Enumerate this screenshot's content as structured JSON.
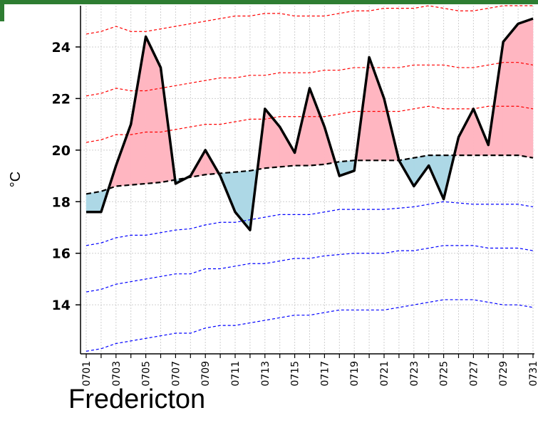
{
  "caption": "Fredericton",
  "chart_data": {
    "type": "line",
    "ylabel": "°C",
    "xlabel": "",
    "ylim": [
      12.1,
      25.6
    ],
    "yticks": [
      14,
      16,
      18,
      20,
      22,
      24
    ],
    "x": [
      "0701",
      "0702",
      "0703",
      "0704",
      "0705",
      "0706",
      "0707",
      "0708",
      "0709",
      "0710",
      "0711",
      "0712",
      "0713",
      "0714",
      "0715",
      "0716",
      "0717",
      "0718",
      "0719",
      "0720",
      "0721",
      "0722",
      "0723",
      "0724",
      "0725",
      "0726",
      "0727",
      "0728",
      "0729",
      "0730",
      "0731"
    ],
    "x_tick_labels": [
      "0701",
      "0703",
      "0705",
      "0707",
      "0709",
      "0711",
      "0713",
      "0715",
      "0717",
      "0719",
      "0721",
      "0723",
      "0725",
      "0727",
      "0729",
      "0731"
    ],
    "grid": true,
    "colors": {
      "above_fill": "#ffb6c1",
      "below_fill": "#add8e6",
      "upper_lines": "#ff0000",
      "lower_lines": "#0000ff",
      "observed": "#000000",
      "frame_accent": "#2e7d32"
    },
    "series": [
      {
        "role": "observed",
        "values": [
          17.6,
          17.6,
          19.4,
          21.0,
          24.4,
          23.2,
          18.7,
          19.0,
          20.0,
          19.0,
          17.6,
          16.9,
          21.6,
          20.9,
          19.9,
          22.4,
          20.9,
          19.0,
          19.2,
          23.6,
          22.0,
          19.6,
          18.6,
          19.4,
          18.1,
          20.5,
          21.6,
          20.2,
          24.2,
          24.9,
          25.1
        ]
      },
      {
        "role": "normal",
        "values": [
          18.3,
          18.4,
          18.6,
          18.65,
          18.7,
          18.75,
          18.85,
          18.95,
          19.05,
          19.1,
          19.15,
          19.2,
          19.3,
          19.35,
          19.4,
          19.4,
          19.45,
          19.55,
          19.6,
          19.6,
          19.6,
          19.6,
          19.7,
          19.8,
          19.8,
          19.8,
          19.8,
          19.8,
          19.8,
          19.8,
          19.7
        ]
      },
      {
        "role": "upper",
        "values": [
          24.5,
          24.6,
          24.8,
          24.6,
          24.6,
          24.7,
          24.8,
          24.9,
          25.0,
          25.1,
          25.2,
          25.2,
          25.3,
          25.3,
          25.2,
          25.2,
          25.2,
          25.3,
          25.4,
          25.4,
          25.5,
          25.5,
          25.5,
          25.6,
          25.5,
          25.4,
          25.4,
          25.5,
          25.6,
          25.6,
          25.6
        ]
      },
      {
        "role": "upper",
        "values": [
          22.1,
          22.2,
          22.4,
          22.3,
          22.3,
          22.4,
          22.5,
          22.6,
          22.7,
          22.8,
          22.8,
          22.9,
          22.9,
          23.0,
          23.0,
          23.0,
          23.1,
          23.1,
          23.2,
          23.2,
          23.2,
          23.2,
          23.3,
          23.3,
          23.3,
          23.2,
          23.2,
          23.3,
          23.4,
          23.4,
          23.3
        ]
      },
      {
        "role": "upper",
        "values": [
          20.3,
          20.4,
          20.6,
          20.6,
          20.7,
          20.7,
          20.8,
          20.9,
          21.0,
          21.0,
          21.1,
          21.2,
          21.2,
          21.3,
          21.3,
          21.3,
          21.3,
          21.4,
          21.5,
          21.5,
          21.5,
          21.5,
          21.6,
          21.7,
          21.6,
          21.6,
          21.6,
          21.7,
          21.7,
          21.7,
          21.6
        ]
      },
      {
        "role": "lower",
        "values": [
          16.3,
          16.4,
          16.6,
          16.7,
          16.7,
          16.8,
          16.9,
          16.95,
          17.1,
          17.2,
          17.2,
          17.3,
          17.4,
          17.5,
          17.5,
          17.5,
          17.6,
          17.7,
          17.7,
          17.7,
          17.7,
          17.75,
          17.8,
          17.9,
          18.0,
          17.95,
          17.9,
          17.9,
          17.9,
          17.9,
          17.8
        ]
      },
      {
        "role": "lower",
        "values": [
          14.5,
          14.6,
          14.8,
          14.9,
          15.0,
          15.1,
          15.2,
          15.2,
          15.4,
          15.4,
          15.5,
          15.6,
          15.6,
          15.7,
          15.8,
          15.8,
          15.9,
          15.95,
          16.0,
          16.0,
          16.0,
          16.1,
          16.1,
          16.2,
          16.3,
          16.3,
          16.3,
          16.2,
          16.2,
          16.2,
          16.1
        ]
      },
      {
        "role": "lower",
        "values": [
          12.2,
          12.3,
          12.5,
          12.6,
          12.7,
          12.8,
          12.9,
          12.9,
          13.1,
          13.2,
          13.2,
          13.3,
          13.4,
          13.5,
          13.6,
          13.6,
          13.7,
          13.8,
          13.8,
          13.8,
          13.8,
          13.9,
          14.0,
          14.1,
          14.2,
          14.2,
          14.2,
          14.1,
          14.0,
          14.0,
          13.9
        ]
      }
    ]
  }
}
